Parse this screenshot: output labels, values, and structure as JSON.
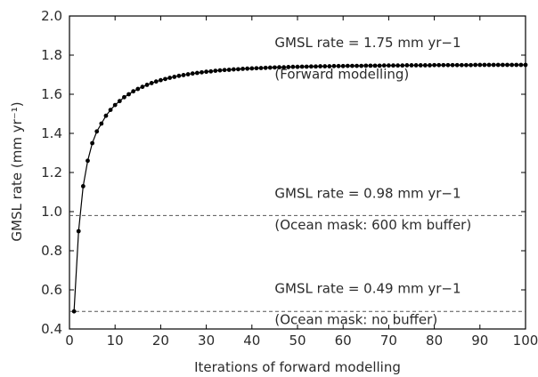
{
  "chart_data": {
    "type": "line",
    "xlabel": "Iterations of forward modelling",
    "ylabel": "GMSL rate (mm yr⁻¹)",
    "xlim": [
      0,
      100
    ],
    "ylim": [
      0.4,
      2.0
    ],
    "xticks": [
      0,
      10,
      20,
      30,
      40,
      50,
      60,
      70,
      80,
      90,
      100
    ],
    "yticks": [
      0.4,
      0.6,
      0.8,
      1.0,
      1.2,
      1.4,
      1.6,
      1.8,
      2.0
    ],
    "ytick_labels": [
      "0.4",
      "0.6",
      "0.8",
      "1.0",
      "1.2",
      "1.4",
      "1.6",
      "1.8",
      "2.0"
    ],
    "grid": false,
    "series": [
      {
        "style": "solid line with filled circle markers",
        "color": "#000000",
        "x_start": 1,
        "x_end": 100,
        "y": [
          0.49,
          0.9,
          1.13,
          1.26,
          1.35,
          1.41,
          1.45,
          1.49,
          1.52,
          1.545,
          1.565,
          1.585,
          1.6,
          1.615,
          1.627,
          1.638,
          1.648,
          1.657,
          1.665,
          1.672,
          1.678,
          1.684,
          1.689,
          1.694,
          1.698,
          1.702,
          1.706,
          1.709,
          1.712,
          1.715,
          1.717,
          1.72,
          1.722,
          1.724,
          1.725,
          1.727,
          1.728,
          1.73,
          1.731,
          1.732,
          1.733,
          1.734,
          1.735,
          1.736,
          1.737,
          1.738,
          1.738,
          1.739,
          1.74,
          1.74,
          1.741,
          1.741,
          1.742,
          1.742,
          1.743,
          1.743,
          1.743,
          1.744,
          1.744,
          1.744,
          1.745,
          1.745,
          1.745,
          1.745,
          1.746,
          1.746,
          1.746,
          1.746,
          1.747,
          1.747,
          1.747,
          1.747,
          1.747,
          1.748,
          1.748,
          1.748,
          1.748,
          1.748,
          1.748,
          1.749,
          1.749,
          1.749,
          1.749,
          1.749,
          1.749,
          1.749,
          1.749,
          1.749,
          1.75,
          1.75,
          1.75,
          1.75,
          1.75,
          1.75,
          1.75,
          1.75,
          1.75,
          1.75,
          1.75,
          1.75
        ]
      }
    ],
    "reference_lines": [
      {
        "y": 0.98,
        "style": "dashed",
        "color": "#555555"
      },
      {
        "y": 0.49,
        "style": "dashed",
        "color": "#555555"
      }
    ],
    "annotations": [
      {
        "text": "GMSL rate = 1.75 mm yr−1",
        "x": 45,
        "y": 1.84
      },
      {
        "text": "(Forward modelling)",
        "x": 45,
        "y": 1.68
      },
      {
        "text": "GMSL rate = 0.98 mm yr−1",
        "x": 45,
        "y": 1.07
      },
      {
        "text": "(Ocean mask: 600 km buffer)",
        "x": 45,
        "y": 0.91
      },
      {
        "text": "GMSL rate = 0.49 mm yr−1",
        "x": 45,
        "y": 0.585
      },
      {
        "text": "(Ocean mask: no buffer)",
        "x": 45,
        "y": 0.425
      }
    ]
  }
}
